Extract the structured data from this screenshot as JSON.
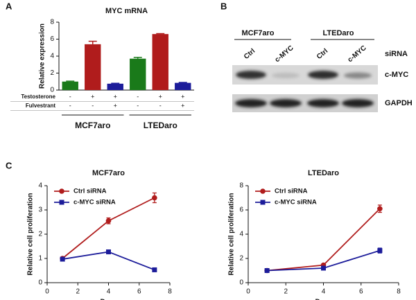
{
  "panel_labels": [
    "A",
    "B",
    "C"
  ],
  "chart_data": [
    {
      "type": "bar",
      "title": "MYC mRNA",
      "y_label": "Relative expression",
      "categories": [
        null,
        null,
        null,
        null,
        null,
        null
      ],
      "values": [
        1.0,
        5.4,
        0.75,
        3.7,
        6.6,
        0.85
      ],
      "errors": [
        0.05,
        0.35,
        0.05,
        0.15,
        0.05,
        0.05
      ],
      "colors": [
        "#1a7a1a",
        "#b01c1c",
        "#1c1c9a",
        "#1a7a1a",
        "#b01c1c",
        "#1c1c9a"
      ],
      "ylim": [
        0,
        8
      ],
      "yticks": [
        0,
        2,
        4,
        6,
        8
      ],
      "treatments": [
        {
          "name": "Testosterone",
          "signs": [
            "-",
            "+",
            "+",
            "-",
            "+",
            "+"
          ]
        },
        {
          "name": "Fulvestrant",
          "signs": [
            "-",
            "-",
            "+",
            "-",
            "-",
            "+"
          ]
        }
      ],
      "groups": [
        "MCF7aro",
        "LTEDaro"
      ]
    },
    {
      "type": "line",
      "title": "MCF7aro",
      "x_label": "Days",
      "y_label": "Relative cell proliferation",
      "x": [
        1,
        4,
        7
      ],
      "series": [
        {
          "name": "Ctrl siRNA",
          "color": "#b01c1c",
          "marker": "circle",
          "values": [
            1.0,
            2.55,
            3.5
          ],
          "errors": [
            0.05,
            0.12,
            0.2
          ]
        },
        {
          "name": "c-MYC siRNA",
          "color": "#1c1c9a",
          "marker": "square",
          "values": [
            0.97,
            1.27,
            0.53
          ],
          "errors": [
            0.03,
            0.04,
            0.03
          ]
        }
      ],
      "xlim": [
        0,
        8
      ],
      "xticks": [
        0,
        2,
        4,
        6,
        8
      ],
      "ylim": [
        0,
        4
      ],
      "yticks": [
        0,
        1,
        2,
        3,
        4
      ],
      "legend": "upper left"
    },
    {
      "type": "line",
      "title": "LTEDaro",
      "x_label": "Days",
      "y_label": "Relative cell proliferation",
      "x": [
        1,
        4,
        7
      ],
      "series": [
        {
          "name": "Ctrl siRNA",
          "color": "#b01c1c",
          "marker": "circle",
          "values": [
            1.0,
            1.45,
            6.1
          ],
          "errors": [
            0.05,
            0.1,
            0.3
          ]
        },
        {
          "name": "c-MYC siRNA",
          "color": "#1c1c9a",
          "marker": "square",
          "values": [
            1.0,
            1.2,
            2.65
          ],
          "errors": [
            0.05,
            0.08,
            0.2
          ]
        }
      ],
      "xlim": [
        0,
        8
      ],
      "xticks": [
        0,
        2,
        4,
        6,
        8
      ],
      "ylim": [
        0,
        8
      ],
      "yticks": [
        0,
        2,
        4,
        6,
        8
      ],
      "legend": "upper left"
    }
  ],
  "blot": {
    "cell_lines": [
      "MCF7aro",
      "LTEDaro"
    ],
    "lanes": [
      "Ctrl",
      "c-MYC",
      "Ctrl",
      "c-MYC"
    ],
    "lane_row_label": "siRNA",
    "proteins": [
      "c-MYC",
      "GAPDH"
    ]
  }
}
